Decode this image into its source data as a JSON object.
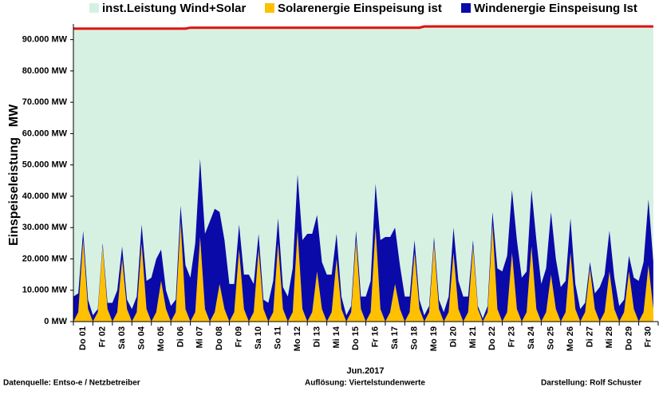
{
  "chart_data": {
    "type": "stacked-area",
    "y_label": "Einspeiseleistung",
    "y_unit": "MW",
    "x_label": "Jun.2017",
    "footer": {
      "source": "Datenquelle:  Entso-e  / Netzbetreiber",
      "resolution": "Auflösung: Viertelstundenwerte",
      "author": "Darstellung: Rolf Schuster"
    },
    "ylim": [
      0,
      95000
    ],
    "yticks": [
      {
        "value": 0,
        "label": "0 MW"
      },
      {
        "value": 10000,
        "label": "10.000 MW"
      },
      {
        "value": 20000,
        "label": "20.000 MW"
      },
      {
        "value": 30000,
        "label": "30.000 MW"
      },
      {
        "value": 40000,
        "label": "40.000 MW"
      },
      {
        "value": 50000,
        "label": "50.000 MW"
      },
      {
        "value": 60000,
        "label": "60.000 MW"
      },
      {
        "value": 70000,
        "label": "70.000 MW"
      },
      {
        "value": 80000,
        "label": "80.000 MW"
      },
      {
        "value": 90000,
        "label": "90.000 MW"
      }
    ],
    "categories": [
      "Do 01",
      null,
      null,
      null,
      "Fr 02",
      null,
      null,
      null,
      "Sa 03",
      null,
      null,
      null,
      "So 04",
      null,
      null,
      null,
      "Mo 05",
      null,
      null,
      null,
      "Di 06",
      null,
      null,
      null,
      "Mi 07",
      null,
      null,
      null,
      "Do 08",
      null,
      null,
      null,
      "Fr 09",
      null,
      null,
      null,
      "Sa 10",
      null,
      null,
      null,
      "So 11",
      null,
      null,
      null,
      "Mo 12",
      null,
      null,
      null,
      "Di 13",
      null,
      null,
      null,
      "Mi 14",
      null,
      null,
      null,
      "Do 15",
      null,
      null,
      null,
      "Fr 16",
      null,
      null,
      null,
      "Sa 17",
      null,
      null,
      null,
      "So 18",
      null,
      null,
      null,
      "Mo 19",
      null,
      null,
      null,
      "Di 20",
      null,
      null,
      null,
      "Mi 21",
      null,
      null,
      null,
      "Do 22",
      null,
      null,
      null,
      "Fr 23",
      null,
      null,
      null,
      "Sa 24",
      null,
      null,
      null,
      "So 25",
      null,
      null,
      null,
      "Mo 26",
      null,
      null,
      null,
      "Di 27",
      null,
      null,
      null,
      "Mi 28",
      null,
      null,
      null,
      "Do 29",
      null,
      null,
      null,
      "Fr 30",
      null,
      null,
      null
    ],
    "series": [
      {
        "name": "inst.Leistung Wind+Solar",
        "color": "#d6f1e2",
        "line_color": "#e01010",
        "stack": false,
        "values": [
          93500,
          93500,
          93500,
          93500,
          93500,
          93500,
          93500,
          93500,
          93500,
          93500,
          93500,
          93500,
          93500,
          93500,
          93500,
          93500,
          93500,
          93500,
          93500,
          93500,
          93500,
          93500,
          93500,
          93500,
          93800,
          93800,
          93800,
          93800,
          93800,
          93800,
          93800,
          93800,
          93800,
          93800,
          93800,
          93800,
          93800,
          93800,
          93800,
          93800,
          93800,
          93800,
          93800,
          93800,
          93800,
          93800,
          93800,
          93800,
          93800,
          93800,
          93800,
          93800,
          93800,
          93800,
          93800,
          93800,
          93800,
          93800,
          93800,
          93800,
          93800,
          93800,
          93800,
          93800,
          93800,
          93800,
          93800,
          93800,
          93800,
          93800,
          93800,
          93800,
          94200,
          94200,
          94200,
          94200,
          94200,
          94200,
          94200,
          94200,
          94200,
          94200,
          94200,
          94200,
          94200,
          94200,
          94200,
          94200,
          94200,
          94200,
          94200,
          94200,
          94200,
          94200,
          94200,
          94200,
          94200,
          94200,
          94200,
          94200,
          94200,
          94200,
          94200,
          94200,
          94200,
          94200,
          94200,
          94200,
          94200,
          94200,
          94200,
          94200,
          94200,
          94200,
          94200,
          94200,
          94200,
          94200,
          94200,
          94200
        ]
      },
      {
        "name": "Solarenergie Einspeisung ist",
        "color": "#ffc000",
        "stack": true,
        "values": [
          0,
          3000,
          26000,
          4000,
          0,
          3000,
          24000,
          4000,
          0,
          3000,
          20000,
          4000,
          0,
          3000,
          25000,
          4000,
          0,
          3000,
          13000,
          4000,
          0,
          3000,
          32000,
          4000,
          0,
          3000,
          27000,
          4000,
          0,
          3000,
          12000,
          4000,
          0,
          3000,
          23000,
          4000,
          0,
          3000,
          23000,
          4000,
          0,
          3000,
          25000,
          4000,
          0,
          3000,
          29000,
          4000,
          0,
          3000,
          16000,
          4000,
          0,
          3000,
          20000,
          4000,
          0,
          3000,
          26000,
          4000,
          0,
          3000,
          30000,
          4000,
          0,
          3000,
          12000,
          4000,
          0,
          3000,
          22000,
          4000,
          0,
          3000,
          25000,
          4000,
          0,
          3000,
          22000,
          4000,
          0,
          3000,
          24000,
          4000,
          0,
          3000,
          31000,
          4000,
          0,
          3000,
          22000,
          4000,
          0,
          3000,
          24000,
          4000,
          0,
          3000,
          15000,
          4000,
          0,
          3000,
          22000,
          4000,
          0,
          3000,
          17000,
          4000,
          0,
          3000,
          16000,
          4000,
          0,
          3000,
          16000,
          4000,
          0,
          3000,
          18000,
          4000
        ]
      },
      {
        "name": "Windenergie Einspeisung Ist",
        "color": "#0a0aa8",
        "stack": true,
        "values": [
          8000,
          6000,
          3000,
          3000,
          2000,
          1000,
          1000,
          2000,
          6000,
          7000,
          4000,
          3000,
          4000,
          5000,
          6000,
          9000,
          14000,
          17000,
          10000,
          6000,
          5000,
          4000,
          5000,
          14000,
          14000,
          22000,
          25000,
          24000,
          32000,
          33000,
          23000,
          22000,
          12000,
          9000,
          8000,
          11000,
          15000,
          9000,
          5000,
          3000,
          6000,
          10000,
          8000,
          7000,
          8000,
          14000,
          18000,
          22000,
          28000,
          25000,
          18000,
          15000,
          15000,
          12000,
          8000,
          4000,
          2000,
          2000,
          3000,
          4000,
          8000,
          10000,
          14000,
          22000,
          27000,
          24000,
          18000,
          14000,
          8000,
          5000,
          4000,
          3000,
          2000,
          2000,
          2000,
          3000,
          3000,
          5000,
          8000,
          9000,
          8000,
          5000,
          2000,
          1000,
          1000,
          2000,
          4000,
          13000,
          16000,
          18000,
          20000,
          22000,
          14000,
          13000,
          18000,
          22000,
          12000,
          14000,
          20000,
          16000,
          11000,
          10000,
          11000,
          8000,
          4000,
          3000,
          2000,
          5000,
          11000,
          12000,
          13000,
          10000,
          5000,
          4000,
          5000,
          10000,
          13000,
          16000,
          21000,
          15000
        ]
      }
    ]
  }
}
